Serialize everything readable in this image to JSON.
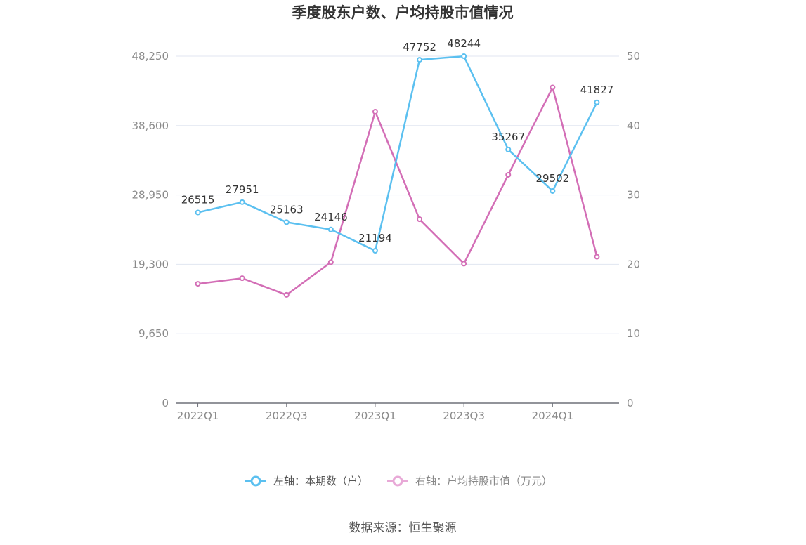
{
  "chart_data": {
    "type": "line",
    "title": "季度股东户数、户均持股市值情况",
    "categories": [
      "2022Q1",
      "2022Q2",
      "2022Q3",
      "2022Q4",
      "2023Q1",
      "2023Q2",
      "2023Q3",
      "2023Q4",
      "2024Q1",
      "2024Q2"
    ],
    "x_tick_labels": [
      "2022Q1",
      "2022Q3",
      "2023Q1",
      "2023Q3",
      "2024Q1"
    ],
    "left_axis": {
      "ticks": [
        "0",
        "9,650",
        "19,300",
        "28,950",
        "38,600",
        "48,250"
      ],
      "range": [
        0,
        48250
      ]
    },
    "right_axis": {
      "ticks": [
        "0",
        "10",
        "20",
        "30",
        "40",
        "50"
      ],
      "range": [
        0,
        50
      ]
    },
    "series": [
      {
        "name": "左轴：本期数（户）",
        "axis": "left",
        "color": "#5bc0f0",
        "values": [
          26515,
          27951,
          25163,
          24146,
          21194,
          47752,
          48244,
          35267,
          29502,
          41827
        ],
        "labels": [
          "26515",
          "27951",
          "25163",
          "24146",
          "21194",
          "47752",
          "48244",
          "35267",
          "29502",
          "41827"
        ]
      },
      {
        "name": "右轴：户均持股市值（万元）",
        "axis": "right",
        "color": "#d36eb6",
        "values": [
          17.2,
          18.0,
          15.6,
          20.3,
          42.0,
          26.5,
          20.1,
          32.9,
          45.5,
          21.1
        ]
      }
    ],
    "grid": true,
    "legend": "bottom-center",
    "source": "数据来源：恒生聚源"
  }
}
